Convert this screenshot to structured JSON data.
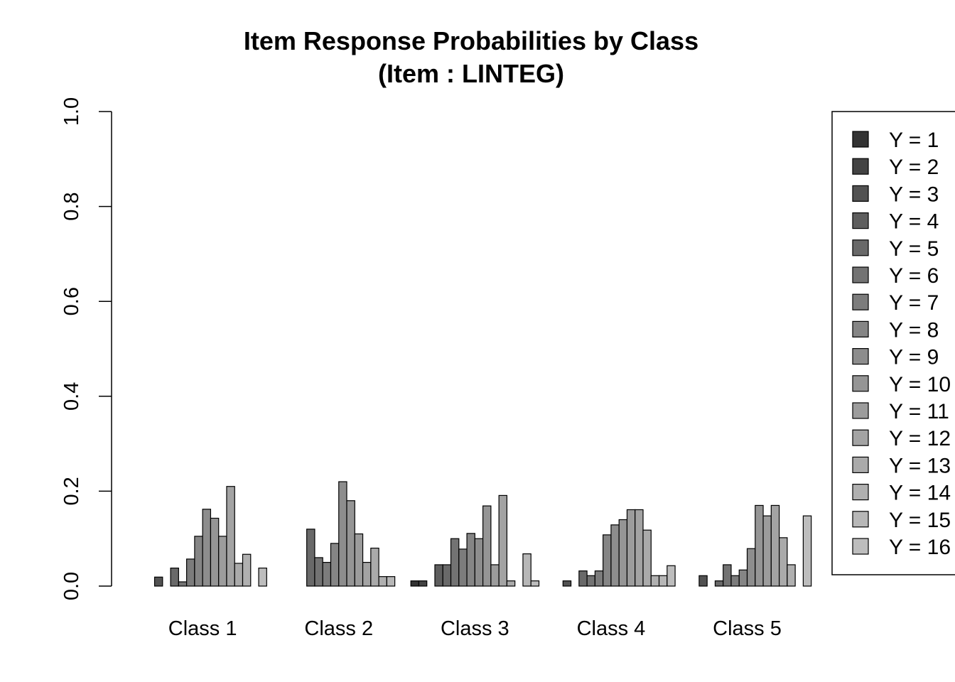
{
  "chart_data": {
    "type": "bar",
    "title": "Item Response Probabilities by Class",
    "subtitle": "(Item : LINTEG)",
    "xlabel": "",
    "ylabel": "",
    "ylim": [
      0,
      1.0
    ],
    "yticks": [
      "0.0",
      "0.2",
      "0.4",
      "0.6",
      "0.8",
      "1.0"
    ],
    "categories": [
      "Class 1",
      "Class 2",
      "Class 3",
      "Class 4",
      "Class 5"
    ],
    "legend_position": "right",
    "series": [
      {
        "name": "Y = 1",
        "color": "#333333",
        "values": [
          0.0,
          0.0,
          0.011,
          0.0,
          0.0
        ]
      },
      {
        "name": "Y = 2",
        "color": "#434343",
        "values": [
          0.0,
          0.0,
          0.011,
          0.0,
          0.0
        ]
      },
      {
        "name": "Y = 3",
        "color": "#525252",
        "values": [
          0.019,
          0.0,
          0.0,
          0.011,
          0.022
        ]
      },
      {
        "name": "Y = 4",
        "color": "#5e5e5e",
        "values": [
          0.0,
          0.0,
          0.045,
          0.0,
          0.0
        ]
      },
      {
        "name": "Y = 5",
        "color": "#696969",
        "values": [
          0.038,
          0.12,
          0.045,
          0.032,
          0.011
        ]
      },
      {
        "name": "Y = 6",
        "color": "#737373",
        "values": [
          0.009,
          0.06,
          0.1,
          0.022,
          0.045
        ]
      },
      {
        "name": "Y = 7",
        "color": "#7c7c7c",
        "values": [
          0.057,
          0.05,
          0.078,
          0.032,
          0.022
        ]
      },
      {
        "name": "Y = 8",
        "color": "#858585",
        "values": [
          0.105,
          0.09,
          0.111,
          0.108,
          0.034
        ]
      },
      {
        "name": "Y = 9",
        "color": "#8d8d8d",
        "values": [
          0.162,
          0.22,
          0.1,
          0.129,
          0.079
        ]
      },
      {
        "name": "Y = 10",
        "color": "#959595",
        "values": [
          0.143,
          0.18,
          0.169,
          0.14,
          0.17
        ]
      },
      {
        "name": "Y = 11",
        "color": "#9c9c9c",
        "values": [
          0.105,
          0.11,
          0.045,
          0.161,
          0.148
        ]
      },
      {
        "name": "Y = 12",
        "color": "#a3a3a3",
        "values": [
          0.21,
          0.05,
          0.191,
          0.161,
          0.17
        ]
      },
      {
        "name": "Y = 13",
        "color": "#aaaaaa",
        "values": [
          0.048,
          0.08,
          0.011,
          0.118,
          0.102
        ]
      },
      {
        "name": "Y = 14",
        "color": "#b0b0b0",
        "values": [
          0.067,
          0.02,
          0.0,
          0.022,
          0.045
        ]
      },
      {
        "name": "Y = 15",
        "color": "#b7b7b7",
        "values": [
          0.0,
          0.02,
          0.068,
          0.022,
          0.0
        ]
      },
      {
        "name": "Y = 16",
        "color": "#bdbdbd",
        "values": [
          0.038,
          0.0,
          0.011,
          0.043,
          0.148
        ]
      }
    ]
  }
}
